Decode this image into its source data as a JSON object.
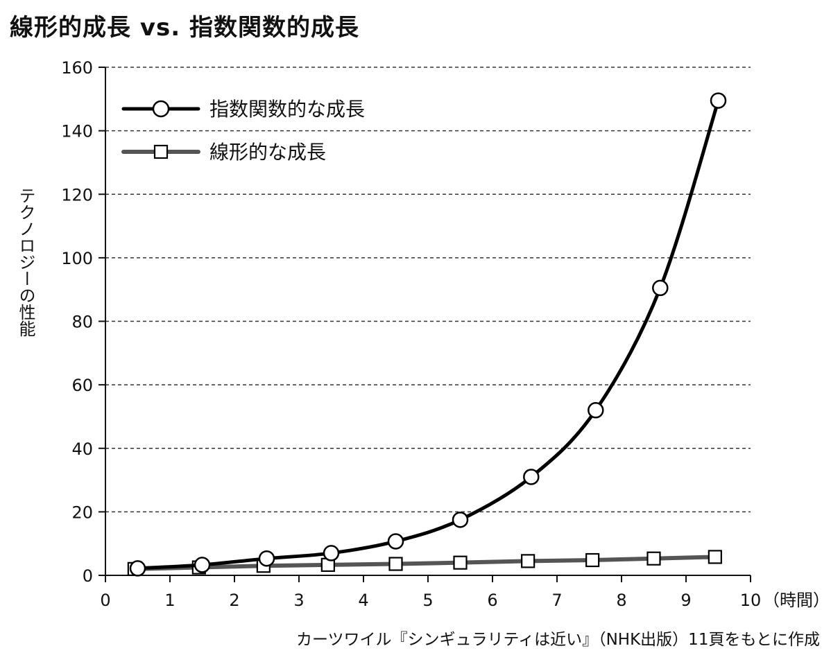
{
  "chart_data": {
    "type": "line",
    "title": "線形的成長 vs. 指数関数的成長",
    "xlabel": "（時間）",
    "ylabel": "テクノロジーの性能",
    "xlim": [
      0,
      10
    ],
    "ylim": [
      0,
      160
    ],
    "x_ticks": [
      "0",
      "1",
      "2",
      "3",
      "4",
      "5",
      "6",
      "7",
      "8",
      "9",
      "10"
    ],
    "y_ticks": [
      "0",
      "20",
      "40",
      "60",
      "80",
      "100",
      "120",
      "140",
      "160"
    ],
    "grid": "horizontal dashed",
    "legend_position": "top-left",
    "series": [
      {
        "name": "指数関数的な成長",
        "marker": "circle",
        "color": "#000000",
        "x": [
          0.5,
          1.5,
          2.5,
          3.5,
          4.5,
          5.5,
          6.6,
          7.6,
          8.6,
          9.5
        ],
        "y": [
          2.2,
          3.3,
          5.3,
          7.0,
          10.7,
          17.5,
          31.0,
          52.0,
          90.5,
          149.5
        ]
      },
      {
        "name": "線形的な成長",
        "marker": "square",
        "color": "#555555",
        "x": [
          0.45,
          1.45,
          2.45,
          3.45,
          4.5,
          5.5,
          6.55,
          7.55,
          8.5,
          9.45
        ],
        "y": [
          2.0,
          2.5,
          3.0,
          3.3,
          3.6,
          4.0,
          4.5,
          4.8,
          5.3,
          5.8
        ]
      }
    ]
  },
  "source_note": "カーツワイル『シンギュラリティは近い』（NHK出版）11頁をもとに作成"
}
